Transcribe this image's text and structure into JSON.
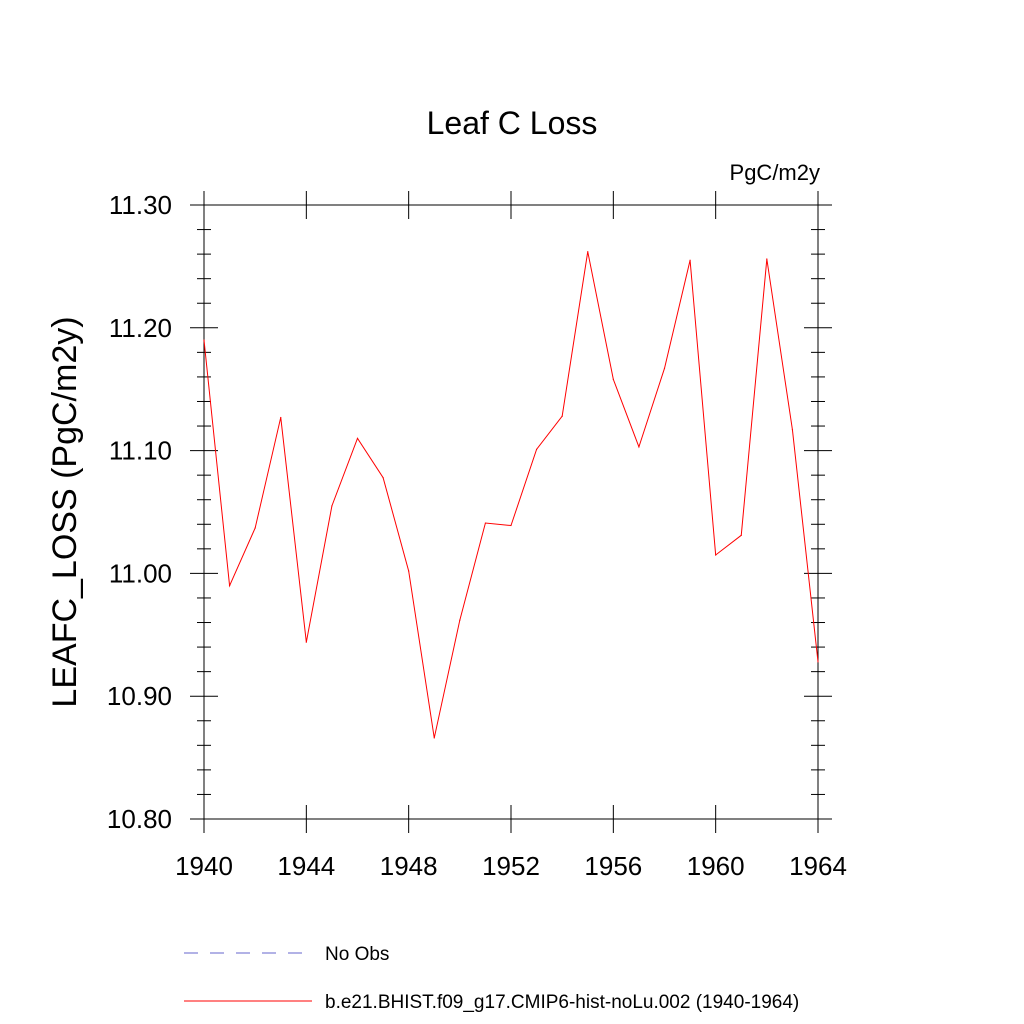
{
  "chart_data": {
    "type": "line",
    "title": "Leaf C Loss",
    "units_label": "PgC/m2y",
    "ylabel": "LEAFC_LOSS  (PgC/m2y)",
    "xlabel": "",
    "xlim": [
      1940,
      1964
    ],
    "ylim": [
      10.8,
      11.3
    ],
    "x_ticks": [
      1940,
      1944,
      1948,
      1952,
      1956,
      1960,
      1964
    ],
    "x_tick_labels": [
      "1940",
      "1944",
      "1948",
      "1952",
      "1956",
      "1960",
      "1964"
    ],
    "y_ticks": [
      10.8,
      10.9,
      11.0,
      11.1,
      11.2,
      11.3
    ],
    "y_tick_labels": [
      "10.80",
      "10.90",
      "11.00",
      "11.10",
      "11.20",
      "11.30"
    ],
    "grid": false,
    "legend_position": "bottom",
    "x": [
      1940,
      1941,
      1942,
      1943,
      1944,
      1945,
      1946,
      1947,
      1948,
      1949,
      1950,
      1951,
      1952,
      1953,
      1954,
      1955,
      1956,
      1957,
      1958,
      1959,
      1960,
      1961,
      1962,
      1963,
      1964
    ],
    "series": [
      {
        "name": "b.e21.BHIST.f09_g17.CMIP6-hist-noLu.002 (1940-1964)",
        "color": "#ff0000",
        "style": "solid",
        "values": [
          11.19,
          10.99,
          11.037,
          11.127,
          10.944,
          11.055,
          11.11,
          11.078,
          11.002,
          10.866,
          10.962,
          11.041,
          11.039,
          11.101,
          11.128,
          11.262,
          11.158,
          11.103,
          11.167,
          11.255,
          11.015,
          11.031,
          11.256,
          11.117,
          10.928
        ]
      }
    ],
    "legend": [
      {
        "label": "No Obs",
        "color": "#6666cc",
        "style": "dashed"
      },
      {
        "label": "b.e21.BHIST.f09_g17.CMIP6-hist-noLu.002 (1940-1964)",
        "color": "#ff0000",
        "style": "solid"
      }
    ]
  }
}
